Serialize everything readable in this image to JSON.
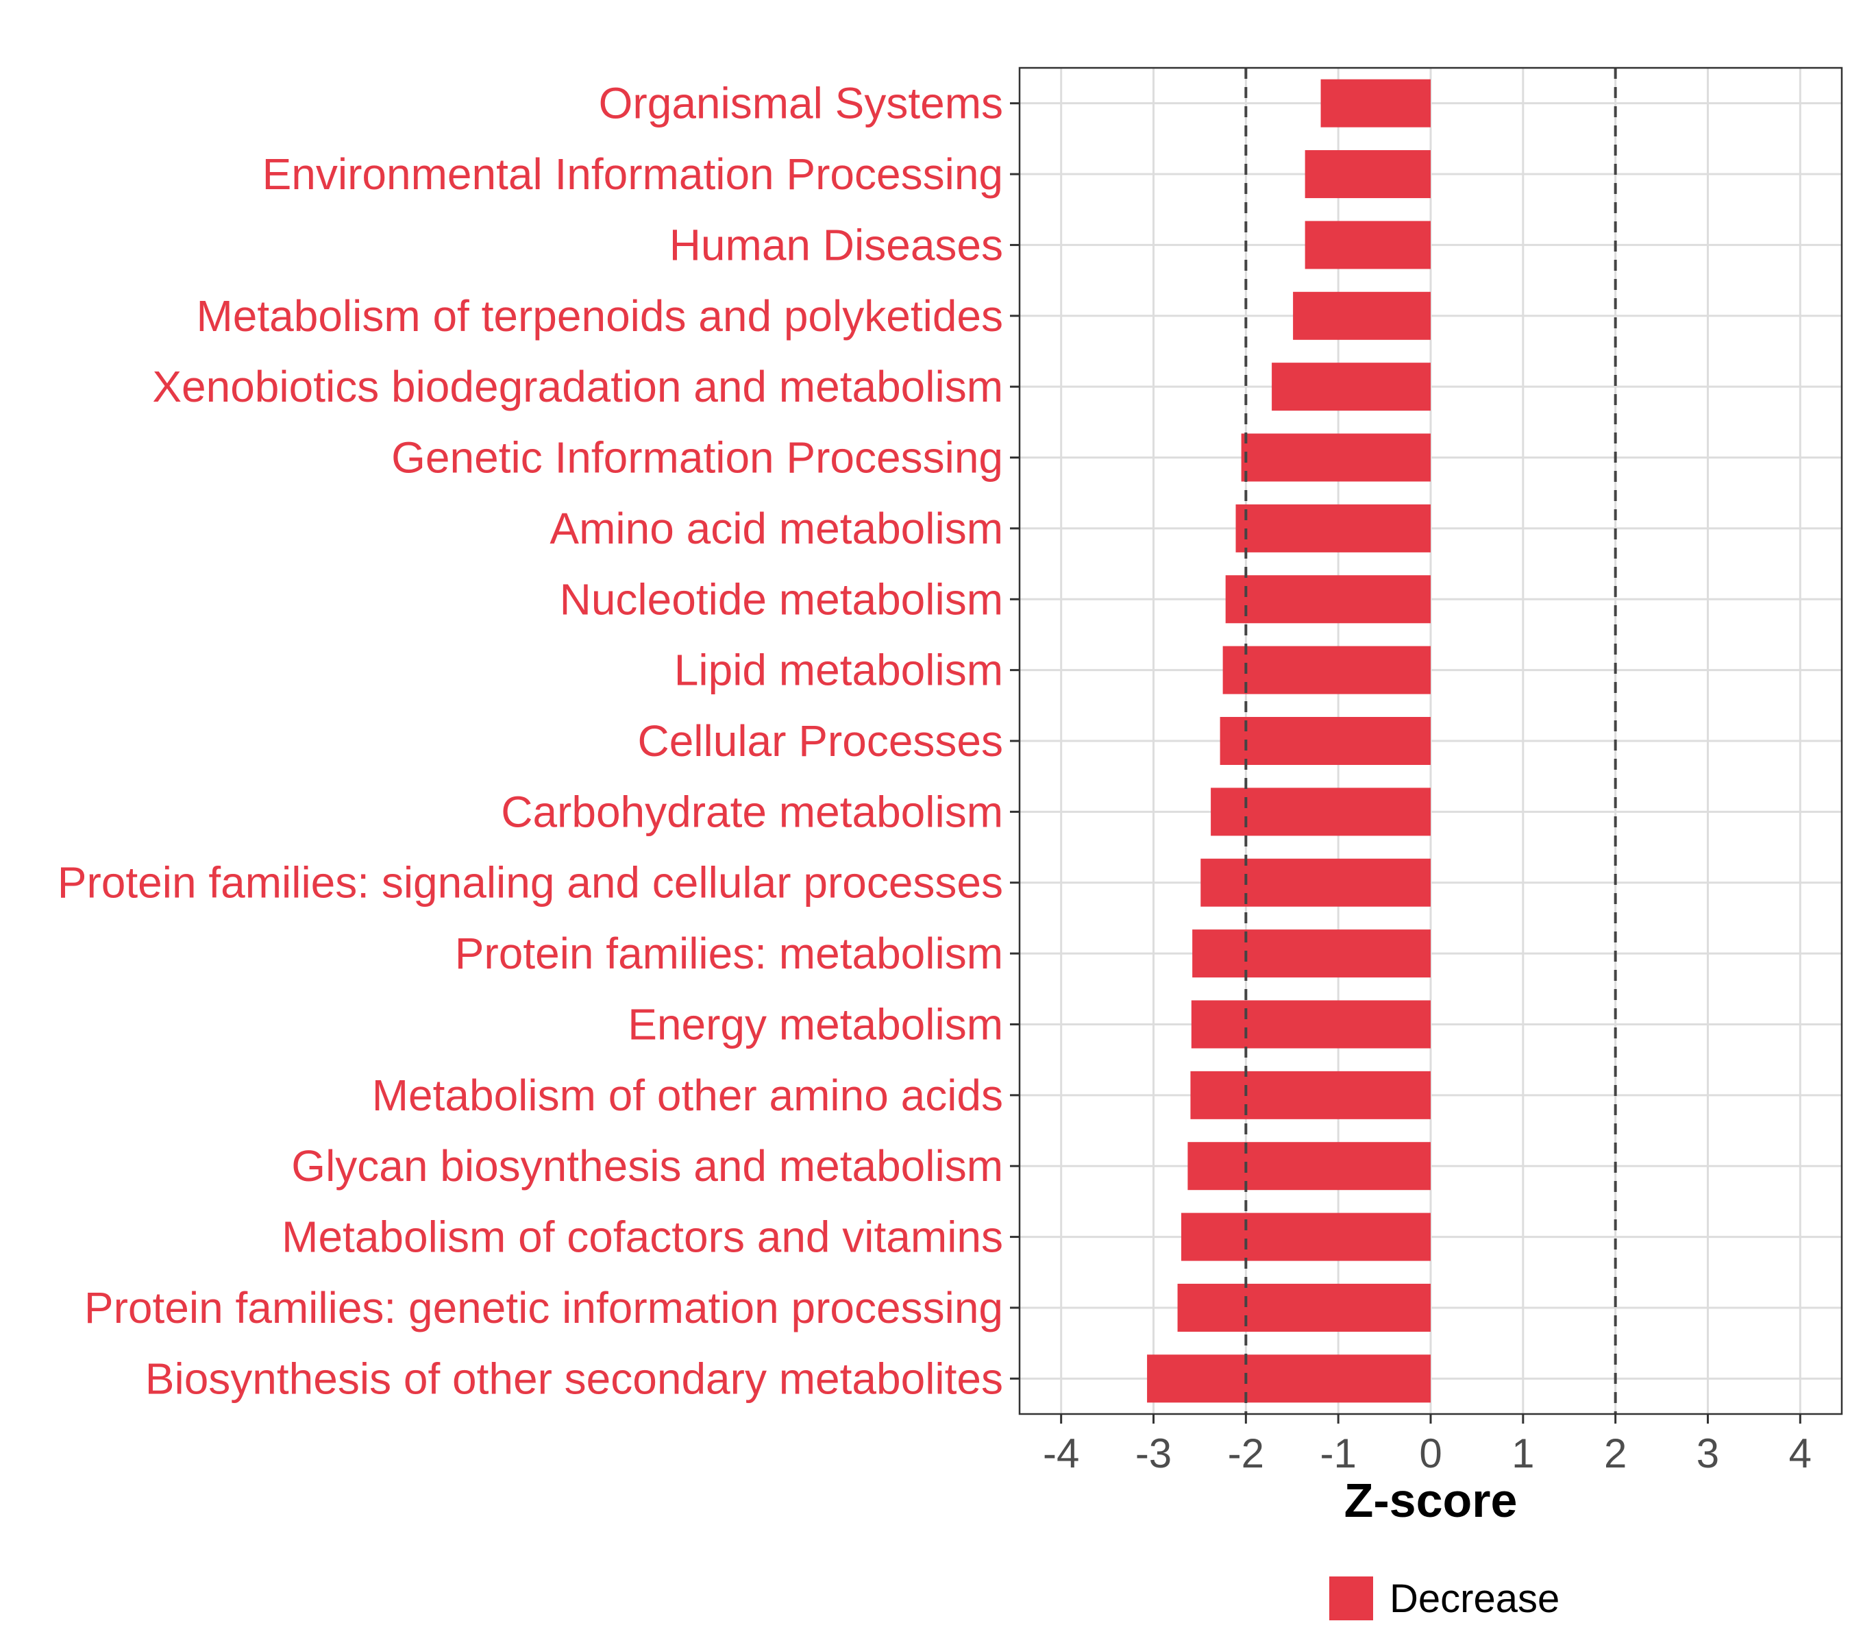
{
  "chart_data": {
    "type": "bar",
    "orientation": "horizontal",
    "categories": [
      "Organismal Systems",
      "Environmental Information Processing",
      "Human Diseases",
      "Metabolism of terpenoids and polyketides",
      "Xenobiotics biodegradation and metabolism",
      "Genetic Information Processing",
      "Amino acid metabolism",
      "Nucleotide metabolism",
      "Lipid metabolism",
      "Cellular Processes",
      "Carbohydrate metabolism",
      "Protein families: signaling and cellular processes",
      "Protein families: metabolism",
      "Energy metabolism",
      "Metabolism of other amino acids",
      "Glycan biosynthesis and metabolism",
      "Metabolism of cofactors and vitamins",
      "Protein families: genetic information processing",
      "Biosynthesis of other secondary metabolites"
    ],
    "series": [
      {
        "name": "Decrease",
        "color": "#e63946",
        "values": [
          -1.19,
          -1.36,
          -1.36,
          -1.49,
          -1.72,
          -2.05,
          -2.11,
          -2.22,
          -2.25,
          -2.28,
          -2.38,
          -2.49,
          -2.58,
          -2.59,
          -2.6,
          -2.63,
          -2.7,
          -2.74,
          -3.07
        ]
      }
    ],
    "xlabel": "Z-score",
    "ylabel": "",
    "xlim": [
      -4.45,
      4.45
    ],
    "xticks": [
      "-4",
      "-3",
      "-2",
      "-1",
      "0",
      "1",
      "2",
      "3",
      "4"
    ],
    "reference_lines": [
      -2,
      2
    ],
    "grid": true,
    "legend": {
      "position": "bottom",
      "entries": [
        "Decrease"
      ]
    },
    "label_color": "#e63946"
  }
}
